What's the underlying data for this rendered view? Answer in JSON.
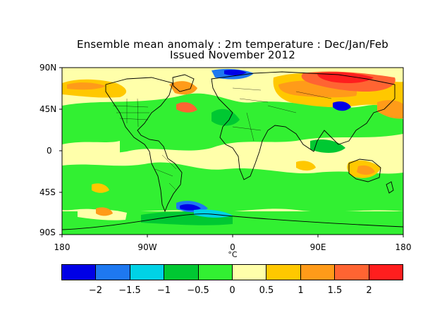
{
  "title_line1": "Ensemble mean anomaly : 2m temperature : Dec/Jan/Feb",
  "title_line2": "Issued November 2012",
  "lat_labels": [
    "90N",
    "45N",
    "0",
    "45S",
    "90S"
  ],
  "lon_labels": [
    "180",
    "90W",
    "0",
    "90E",
    "180"
  ],
  "unit": "°C",
  "colorbar": {
    "colors": [
      "#0000e6",
      "#1e78f0",
      "#00d2e6",
      "#00c832",
      "#32f032",
      "#ffffaa",
      "#ffc800",
      "#ff9b19",
      "#ff6432",
      "#ff1e1e"
    ],
    "tick_labels": [
      "−2",
      "−1.5",
      "−1",
      "−0.5",
      "0",
      "0.5",
      "1",
      "1.5",
      "2"
    ]
  }
}
